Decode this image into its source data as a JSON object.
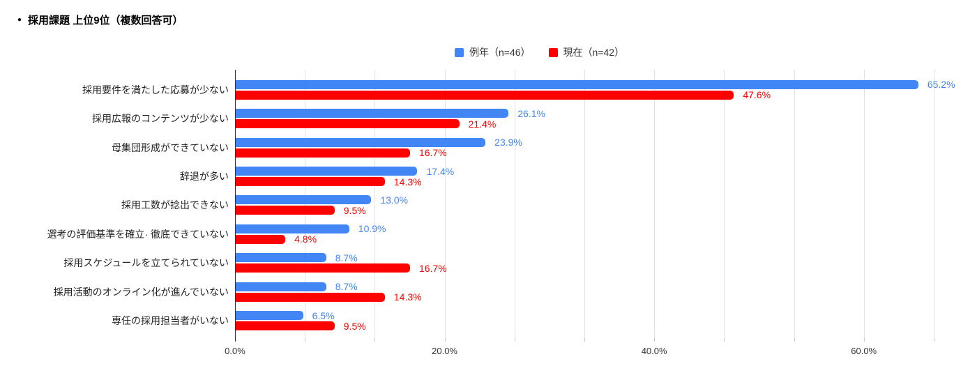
{
  "title": {
    "bullet": "●",
    "text": "採用課題 上位9位（複数回答可）"
  },
  "legend": [
    {
      "label": "例年（n=46）",
      "color": "#4285F4"
    },
    {
      "label": "現在（n=42）",
      "color": "#FF0000"
    }
  ],
  "colors": {
    "series_blue": "#4285F4",
    "series_red": "#FF0000",
    "gridline": "#e2e2e2",
    "axis_line": "#333333"
  },
  "chart_data": {
    "type": "bar",
    "orientation": "horizontal",
    "title": "採用課題 上位9位（複数回答可）",
    "categories": [
      "採用要件を満たした応募が少ない",
      "採用広報のコンテンツが少ない",
      "母集団形成ができていない",
      "辞退が多い",
      "採用工数が捻出できない",
      "選考の評価基準を確立· 徹底できていない",
      "採用スケジュールを立てられていない",
      "採用活動のオンライン化が進んでいない",
      "専任の採用担当者がいない"
    ],
    "series": [
      {
        "name": "例年（n=46）",
        "color": "#4285F4",
        "values": [
          65.2,
          26.1,
          23.9,
          17.4,
          13.0,
          10.9,
          8.7,
          8.7,
          6.5
        ]
      },
      {
        "name": "現在（n=42）",
        "color": "#FF0000",
        "values": [
          47.6,
          21.4,
          16.7,
          14.3,
          9.5,
          4.8,
          16.7,
          14.3,
          9.5
        ]
      }
    ],
    "value_label_suffix": "%",
    "x_tick_values": [
      0,
      20,
      40,
      60
    ],
    "x_tick_labels": [
      "0.0%",
      "20.0%",
      "40.0%",
      "60.0%"
    ],
    "xlim": [
      0,
      70.8
    ],
    "minor_grid_count": 10,
    "minor_grid_step": 6.6667,
    "grid": true,
    "legend_position": "top"
  }
}
